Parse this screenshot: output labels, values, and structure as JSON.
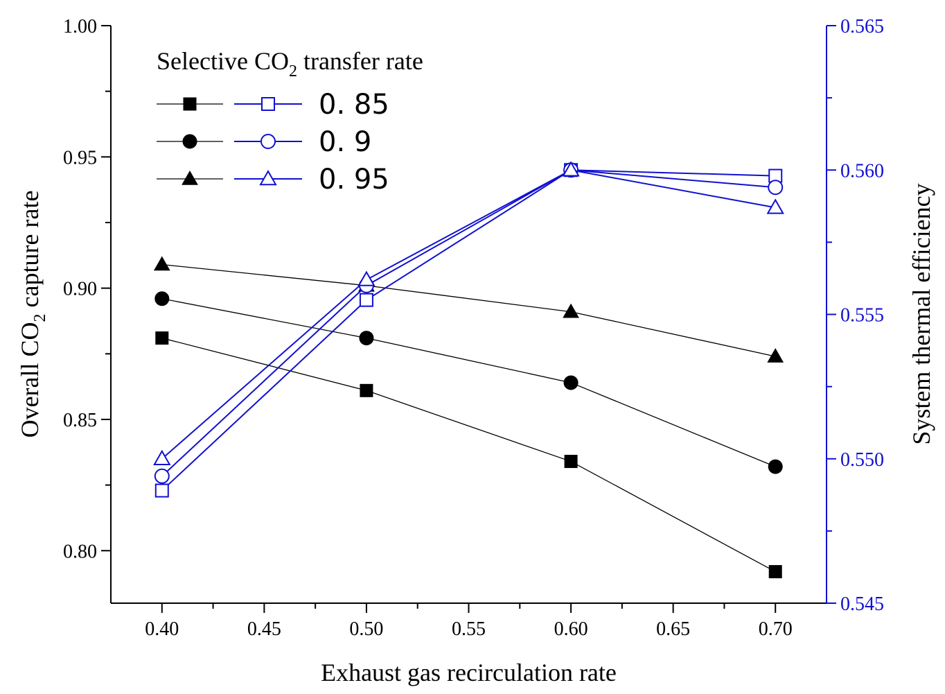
{
  "chart_data": {
    "type": "line",
    "title": "",
    "xlabel": "Exhaust gas recirculation rate",
    "ylabel_parts": [
      "Overall CO",
      "2",
      " capture rate"
    ],
    "y2label": "System thermal efficiency",
    "x": [
      0.4,
      0.5,
      0.6,
      0.7
    ],
    "xlim": [
      0.375,
      0.725
    ],
    "ylim": [
      0.78,
      1.0
    ],
    "y2lim": [
      0.545,
      0.565
    ],
    "x_ticks": [
      "0.40",
      "0.45",
      "0.50",
      "0.55",
      "0.60",
      "0.65",
      "0.70"
    ],
    "y_ticks": [
      "0.80",
      "0.85",
      "0.90",
      "0.95",
      "1.00"
    ],
    "y2_ticks": [
      "0.545",
      "0.550",
      "0.555",
      "0.560",
      "0.565"
    ],
    "grid": false,
    "legend": {
      "position": "top-left",
      "title_parts": [
        "Selective CO",
        "2",
        " transfer rate"
      ],
      "entries": [
        "0. 85",
        "0. 9",
        "0. 95"
      ]
    },
    "colors": {
      "left_axis": "#000000",
      "right_axis": "#1010d0"
    },
    "series": [
      {
        "axis": "left",
        "marker": "square-filled",
        "group": "0. 85",
        "values": [
          0.881,
          0.861,
          0.834,
          0.792
        ]
      },
      {
        "axis": "left",
        "marker": "circle-filled",
        "group": "0. 9",
        "values": [
          0.896,
          0.881,
          0.864,
          0.832
        ]
      },
      {
        "axis": "left",
        "marker": "triangle-filled",
        "group": "0. 95",
        "values": [
          0.909,
          0.901,
          0.891,
          0.874
        ]
      },
      {
        "axis": "right",
        "marker": "square-open",
        "group": "0. 85",
        "values": [
          0.5489,
          0.5555,
          0.56,
          0.5598
        ]
      },
      {
        "axis": "right",
        "marker": "circle-open",
        "group": "0. 9",
        "values": [
          0.5494,
          0.556,
          0.56,
          0.5594
        ]
      },
      {
        "axis": "right",
        "marker": "triangle-open",
        "group": "0. 95",
        "values": [
          0.55,
          0.5562,
          0.56,
          0.5587
        ]
      }
    ]
  }
}
